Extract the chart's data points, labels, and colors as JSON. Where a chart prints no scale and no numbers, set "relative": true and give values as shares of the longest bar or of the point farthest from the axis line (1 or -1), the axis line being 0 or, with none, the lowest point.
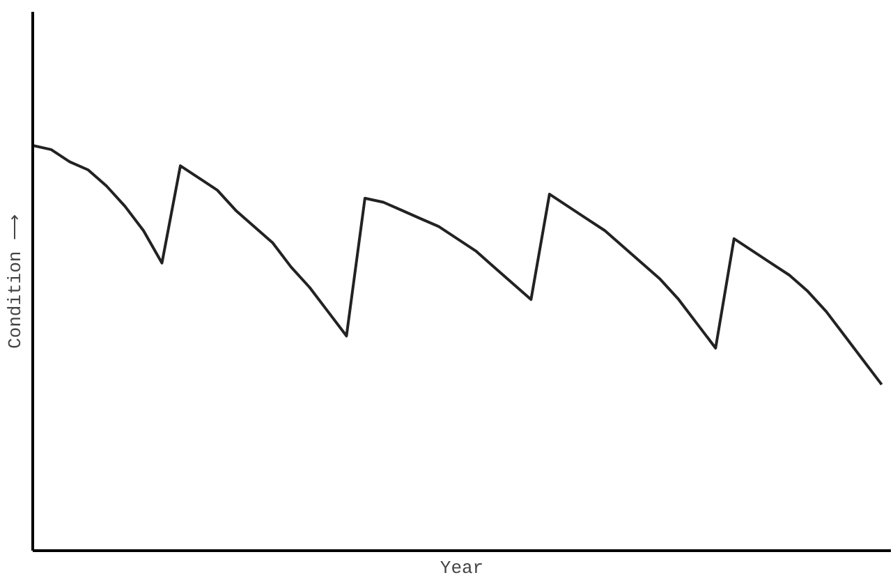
{
  "chart_data": {
    "type": "line",
    "relative": true,
    "xlabel": "Year",
    "ylabel": "Condition ⟶",
    "marker": "none",
    "line_style": "solid",
    "categories": [
      null,
      null,
      null,
      null,
      null,
      null,
      null,
      null,
      null,
      null,
      null,
      null,
      null,
      null,
      null,
      null,
      null,
      null,
      null,
      null,
      null,
      null,
      null,
      null,
      null,
      null,
      null,
      null,
      null,
      null,
      null,
      null,
      null,
      null,
      null,
      null,
      null,
      null,
      null,
      null,
      null,
      null,
      null,
      null,
      null,
      null,
      null
    ],
    "series": [
      {
        "color": "#222222",
        "values": [
          1.0,
          0.99,
          0.96,
          0.94,
          0.9,
          0.85,
          0.79,
          0.71,
          0.95,
          0.92,
          0.89,
          0.84,
          0.8,
          0.76,
          0.7,
          0.65,
          0.59,
          0.53,
          0.87,
          0.86,
          0.84,
          0.82,
          0.8,
          0.77,
          0.74,
          0.7,
          0.66,
          0.62,
          0.88,
          0.85,
          0.82,
          0.79,
          0.75,
          0.71,
          0.67,
          0.62,
          0.56,
          0.5,
          0.77,
          0.74,
          0.71,
          0.68,
          0.64,
          0.59,
          0.53,
          0.47,
          0.41
        ]
      }
    ]
  }
}
